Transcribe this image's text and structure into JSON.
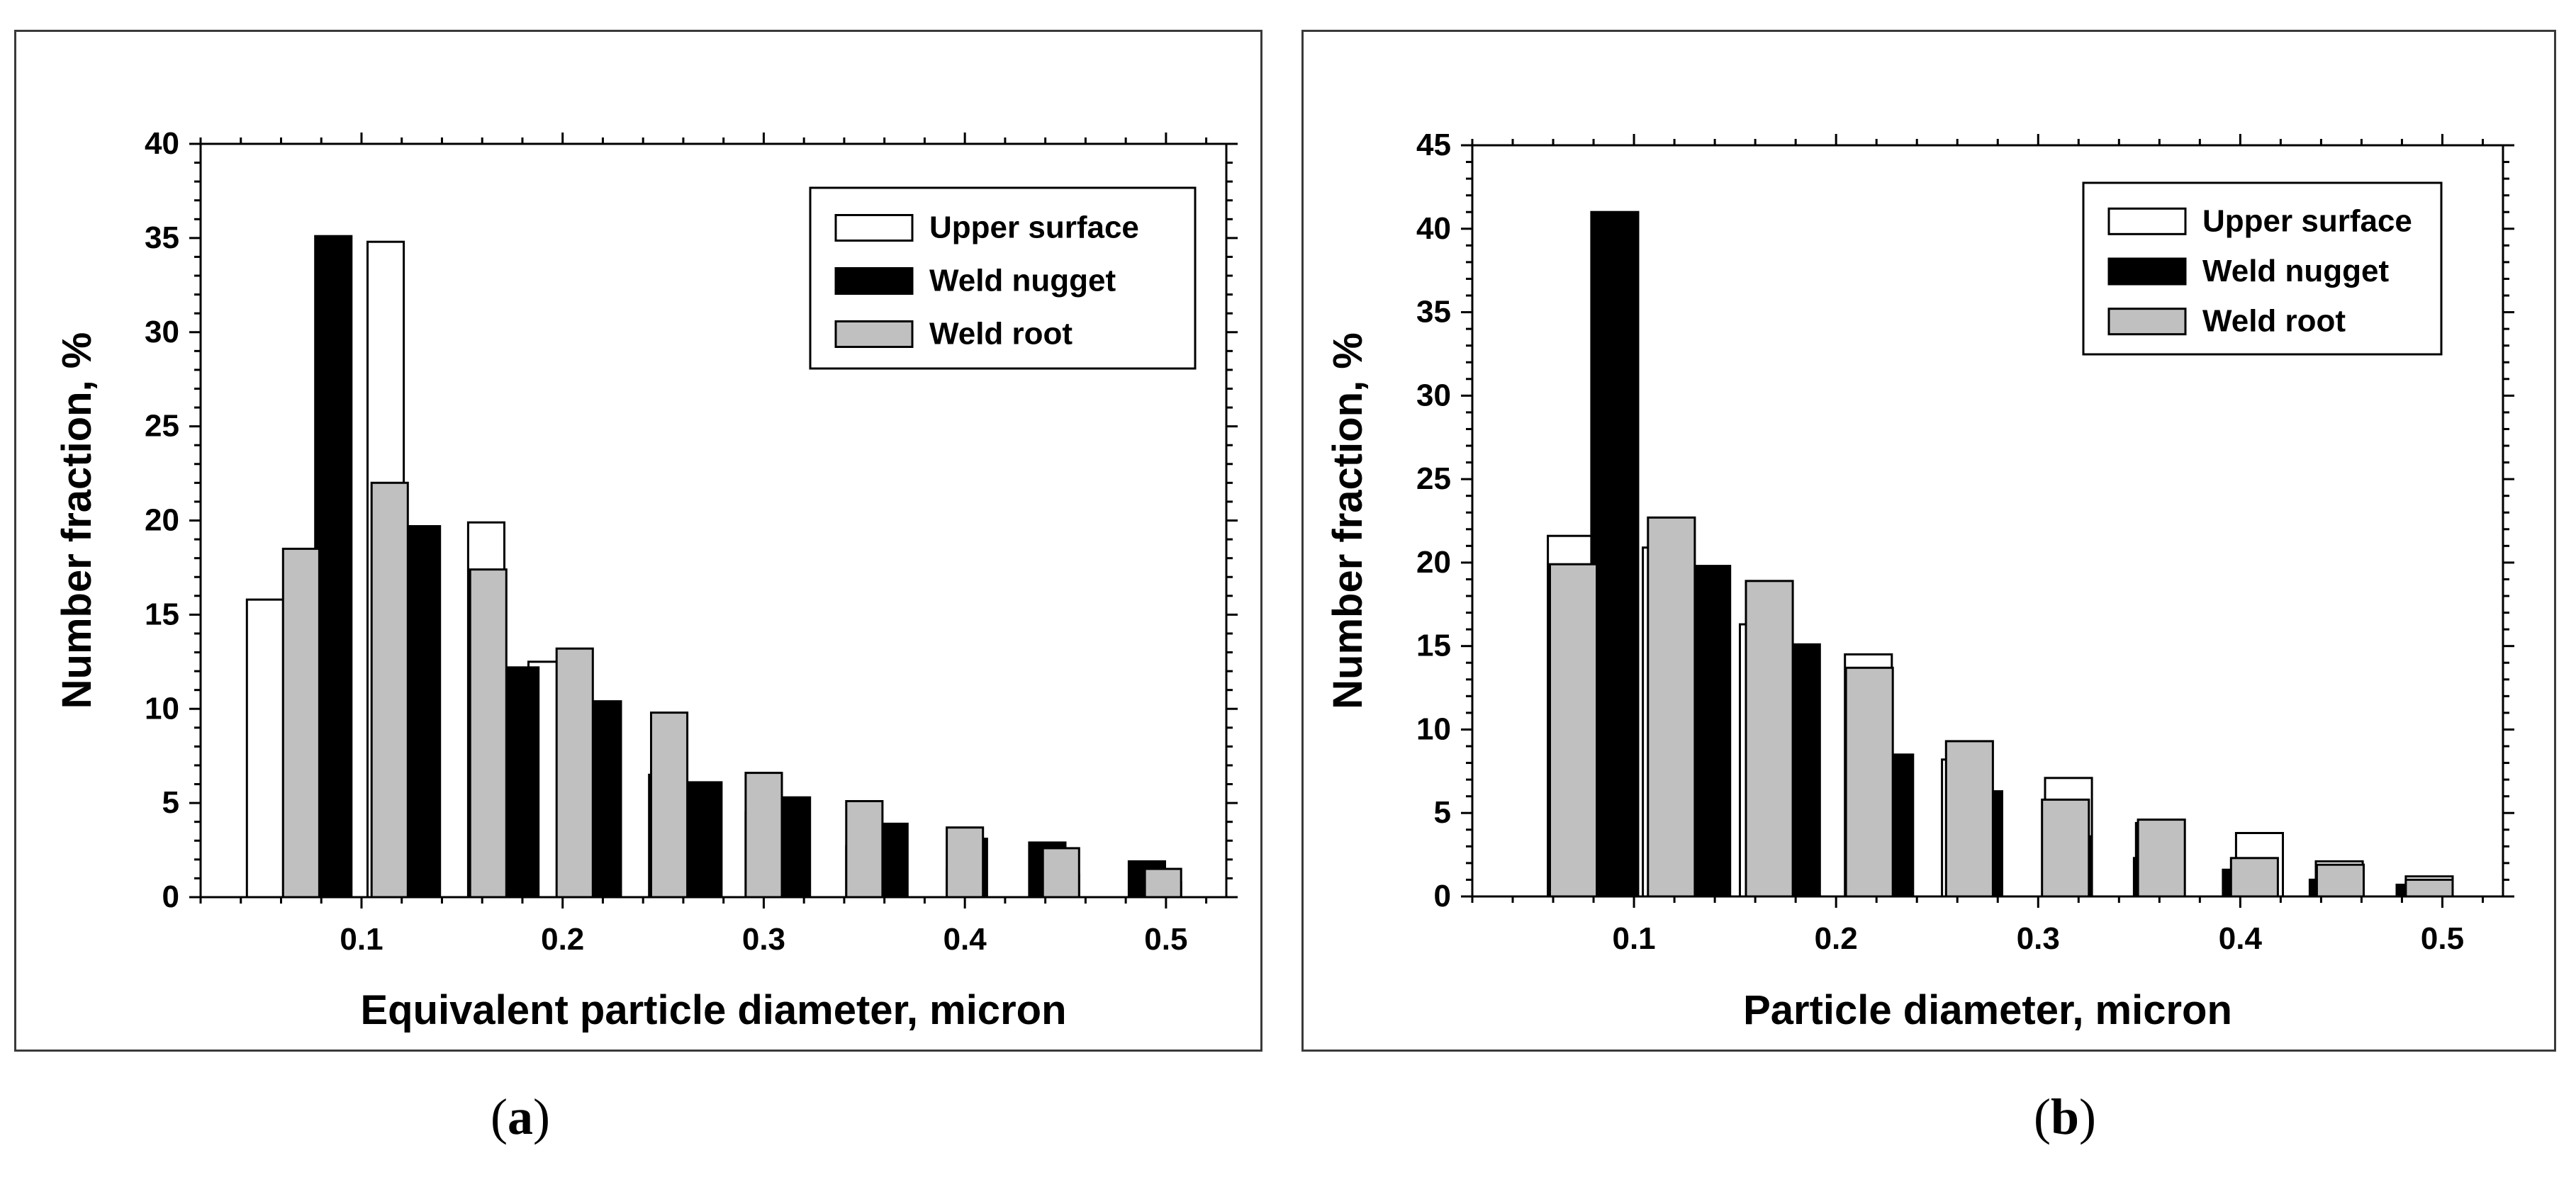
{
  "colors": {
    "upper": "#ffffff",
    "nugget": "#000000",
    "root": "#c0c0c0",
    "stroke": "#000000"
  },
  "captions": {
    "a": "a",
    "b": "b"
  },
  "chart_data": [
    {
      "id": "a",
      "type": "bar",
      "title": "",
      "xlabel": "Equivalent particle diameter, micron",
      "ylabel": "Number fraction, %",
      "xlim": [
        0.02,
        0.53
      ],
      "ylim": [
        0,
        40
      ],
      "xticks": [
        0.1,
        0.2,
        0.3,
        0.4,
        0.5
      ],
      "xtick_labels": [
        "0.1",
        "0.2",
        "0.3",
        "0.4",
        "0.5"
      ],
      "yticks": [
        0,
        5,
        10,
        15,
        20,
        25,
        30,
        35,
        40
      ],
      "ytick_labels": [
        "0",
        "5",
        "10",
        "15",
        "20",
        "25",
        "30",
        "35",
        "40"
      ],
      "bar_width": 0.018,
      "legend_position": "top-right",
      "series": [
        {
          "name": "Upper surface",
          "key": "upper",
          "x": [
            0.052,
            0.112,
            0.162,
            0.192,
            0.252,
            0.3,
            0.35,
            0.4,
            0.4478,
            0.4985
          ],
          "values": [
            15.8,
            34.8,
            19.9,
            12.5,
            6.5,
            4.5,
            2.7,
            1.5,
            1.2,
            0.8
          ]
        },
        {
          "name": "Weld nugget",
          "key": "nugget",
          "x": [
            0.086,
            0.13,
            0.179,
            0.22,
            0.27,
            0.314,
            0.3625,
            0.402,
            0.441,
            0.4905
          ],
          "values": [
            35.1,
            19.7,
            12.2,
            10.4,
            6.1,
            5.3,
            3.9,
            3.1,
            2.9,
            1.9
          ]
        },
        {
          "name": "Weld root",
          "key": "root",
          "x": [
            0.07,
            0.114,
            0.163,
            0.206,
            0.253,
            0.3,
            0.35,
            0.4,
            0.4478,
            0.4985
          ],
          "values": [
            18.5,
            22.0,
            17.4,
            13.2,
            9.8,
            6.6,
            5.1,
            3.7,
            2.6,
            1.5
          ]
        }
      ]
    },
    {
      "id": "b",
      "type": "bar",
      "title": "",
      "xlabel": "Particle diameter, micron",
      "ylabel": "Number fraction, %",
      "xlim": [
        0.02,
        0.53
      ],
      "ylim": [
        0,
        45
      ],
      "xticks": [
        0.1,
        0.2,
        0.3,
        0.4,
        0.5
      ],
      "xtick_labels": [
        "0.1",
        "0.2",
        "0.3",
        "0.4",
        "0.5"
      ],
      "yticks": [
        0,
        5,
        10,
        15,
        20,
        25,
        30,
        35,
        40,
        45
      ],
      "ytick_labels": [
        "0",
        "5",
        "10",
        "15",
        "20",
        "25",
        "30",
        "35",
        "40",
        "45"
      ],
      "bar_width": 0.0232,
      "legend_position": "top-right",
      "series": [
        {
          "name": "Upper surface",
          "key": "upper",
          "x": [
            0.069,
            0.116,
            0.164,
            0.216,
            0.264,
            0.315,
            0.36,
            0.4095,
            0.449,
            0.4935
          ],
          "values": [
            21.6,
            20.9,
            16.3,
            14.5,
            8.2,
            7.1,
            4.4,
            3.8,
            2.1,
            1.2
          ]
        },
        {
          "name": "Weld nugget",
          "key": "nugget",
          "x": [
            0.0905,
            0.136,
            0.1804,
            0.2265,
            0.2706,
            0.3148,
            0.359,
            0.403,
            0.446,
            0.489
          ],
          "values": [
            41.0,
            19.8,
            15.1,
            8.5,
            6.3,
            3.6,
            2.3,
            1.6,
            1.0,
            0.7
          ]
        },
        {
          "name": "Weld root",
          "key": "root",
          "x": [
            0.07,
            0.1185,
            0.167,
            0.2165,
            0.266,
            0.3135,
            0.361,
            0.407,
            0.4495,
            0.4935
          ],
          "values": [
            19.9,
            22.7,
            18.9,
            13.7,
            9.3,
            5.8,
            4.6,
            2.3,
            1.9,
            1.0
          ]
        }
      ]
    }
  ]
}
